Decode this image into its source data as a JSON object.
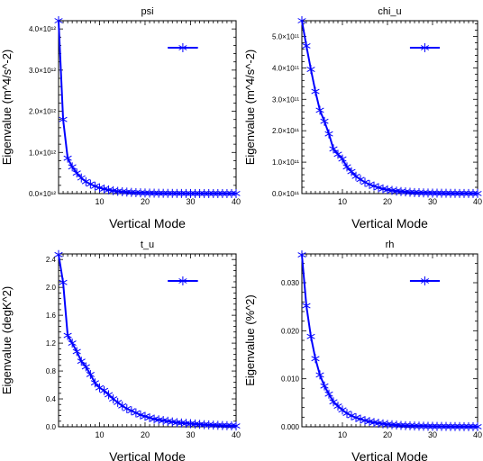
{
  "figure": {
    "name": "eigenvalue-panels"
  },
  "chart_data": [
    {
      "type": "line",
      "title": "psi",
      "xlabel": "Vertical Mode",
      "ylabel": "Eigenvalue (m^4/s^-2)",
      "xlim": [
        1,
        40
      ],
      "ylim": [
        0,
        4200000000000.0
      ],
      "x_ticks": [
        10,
        20,
        30,
        40
      ],
      "y_ticks": [
        0,
        1000000000000.0,
        2000000000000.0,
        3000000000000.0,
        4000000000000.0
      ],
      "y_tick_labels": [
        "0.0×10¹²",
        "1.0×10¹²",
        "2.0×10¹²",
        "3.0×10¹²",
        "4.0×10¹²"
      ],
      "legend": "top-right",
      "series": [
        {
          "color": "#0000ff",
          "marker": "asterisk",
          "x": [
            1,
            2,
            3,
            4,
            5,
            6,
            7,
            8,
            9,
            10,
            11,
            12,
            13,
            14,
            15,
            16,
            17,
            18,
            19,
            20,
            21,
            22,
            23,
            24,
            25,
            26,
            27,
            28,
            29,
            30,
            31,
            32,
            33,
            34,
            35,
            36,
            37,
            38,
            39,
            40
          ],
          "y": [
            4200000000000.0,
            1800000000000.0,
            860000000000.0,
            650000000000.0,
            500000000000.0,
            380000000000.0,
            290000000000.0,
            230000000000.0,
            180000000000.0,
            140000000000.0,
            110000000000.0,
            90000000000.0,
            70000000000.0,
            55000000000.0,
            45000000000.0,
            36000000000.0,
            29000000000.0,
            23000000000.0,
            19000000000.0,
            15000000000.0,
            12000000000.0,
            10000000000.0,
            8000000000.0,
            6500000000.0,
            5500000000.0,
            4500000000.0,
            3700000000.0,
            3000000000.0,
            2500000000.0,
            2100000000.0,
            1800000000.0,
            1500000000.0,
            1200000000.0,
            1000000000.0,
            850000000.0,
            700000000.0,
            600000000.0,
            500000000.0,
            400000000.0,
            300000000.0
          ]
        }
      ]
    },
    {
      "type": "line",
      "title": "chi_u",
      "xlabel": "Vertical Mode",
      "ylabel": "Eigenvalue (m^4/s^-2)",
      "xlim": [
        1,
        40
      ],
      "ylim": [
        0,
        550000000000.0
      ],
      "x_ticks": [
        10,
        20,
        30,
        40
      ],
      "y_ticks": [
        0,
        100000000000.0,
        200000000000.0,
        300000000000.0,
        400000000000.0,
        500000000000.0
      ],
      "y_tick_labels": [
        "0.0×10¹¹",
        "1.0×10¹¹",
        "2.0×10¹¹",
        "3.0×10¹¹",
        "4.0×10¹¹",
        "5.0×10¹¹"
      ],
      "legend": "top-right",
      "series": [
        {
          "color": "#0000ff",
          "marker": "asterisk",
          "x": [
            1,
            2,
            3,
            4,
            5,
            6,
            7,
            8,
            9,
            10,
            11,
            12,
            13,
            14,
            15,
            16,
            17,
            18,
            19,
            20,
            21,
            22,
            23,
            24,
            25,
            26,
            27,
            28,
            29,
            30,
            31,
            32,
            33,
            34,
            35,
            36,
            37,
            38,
            39,
            40
          ],
          "y": [
            550000000000.0,
            470000000000.0,
            395000000000.0,
            325000000000.0,
            265000000000.0,
            230000000000.0,
            190000000000.0,
            142000000000.0,
            125000000000.0,
            110000000000.0,
            85000000000.0,
            70000000000.0,
            55000000000.0,
            45000000000.0,
            36000000000.0,
            29000000000.0,
            24000000000.0,
            19000000000.0,
            15000000000.0,
            12000000000.0,
            10000000000.0,
            8000000000.0,
            6500000000.0,
            5200000000.0,
            4200000000.0,
            3400000000.0,
            2800000000.0,
            2300000000.0,
            1900000000.0,
            1600000000.0,
            1300000000.0,
            1100000000.0,
            900000000.0,
            750000000.0,
            600000000.0,
            500000000.0,
            420000000.0,
            350000000.0,
            280000000.0,
            220000000.0
          ]
        }
      ]
    },
    {
      "type": "line",
      "title": "t_u",
      "xlabel": "Vertical Mode",
      "ylabel": "Eigenvalue (degK^2)",
      "xlim": [
        1,
        40
      ],
      "ylim": [
        0,
        2.48
      ],
      "x_ticks": [
        10,
        20,
        30,
        40
      ],
      "y_ticks": [
        0,
        0.4,
        0.8,
        1.2,
        1.6,
        2.0,
        2.4
      ],
      "y_tick_labels": [
        "0.0",
        "0.4",
        "0.8",
        "1.2",
        "1.6",
        "2.0",
        "2.4"
      ],
      "legend": "top-right",
      "series": [
        {
          "color": "#0000ff",
          "marker": "asterisk",
          "x": [
            1,
            2,
            3,
            4,
            5,
            6,
            7,
            8,
            9,
            10,
            11,
            12,
            13,
            14,
            15,
            16,
            17,
            18,
            19,
            20,
            21,
            22,
            23,
            24,
            25,
            26,
            27,
            28,
            29,
            30,
            31,
            32,
            33,
            34,
            35,
            36,
            37,
            38,
            39,
            40
          ],
          "y": [
            2.47,
            2.07,
            1.31,
            1.2,
            1.08,
            0.94,
            0.86,
            0.75,
            0.63,
            0.56,
            0.52,
            0.46,
            0.4,
            0.35,
            0.3,
            0.26,
            0.23,
            0.2,
            0.17,
            0.15,
            0.13,
            0.11,
            0.1,
            0.09,
            0.08,
            0.07,
            0.06,
            0.055,
            0.05,
            0.045,
            0.04,
            0.035,
            0.03,
            0.027,
            0.024,
            0.021,
            0.018,
            0.016,
            0.014,
            0.012
          ]
        }
      ]
    },
    {
      "type": "line",
      "title": "rh",
      "xlabel": "Vertical Mode",
      "ylabel": "Eigenvalue (%^2)",
      "xlim": [
        1,
        40
      ],
      "ylim": [
        0,
        0.036
      ],
      "x_ticks": [
        10,
        20,
        30,
        40
      ],
      "y_ticks": [
        0,
        0.01,
        0.02,
        0.03
      ],
      "y_tick_labels": [
        "0.000",
        "0.010",
        "0.020",
        "0.030"
      ],
      "legend": "top-right",
      "series": [
        {
          "color": "#0000ff",
          "marker": "asterisk",
          "x": [
            1,
            2,
            3,
            4,
            5,
            6,
            7,
            8,
            9,
            10,
            11,
            12,
            13,
            14,
            15,
            16,
            17,
            18,
            19,
            20,
            21,
            22,
            23,
            24,
            25,
            26,
            27,
            28,
            29,
            30,
            31,
            32,
            33,
            34,
            35,
            36,
            37,
            38,
            39,
            40
          ],
          "y": [
            0.0358,
            0.0252,
            0.0188,
            0.0142,
            0.0108,
            0.0085,
            0.0068,
            0.0052,
            0.0043,
            0.0035,
            0.0028,
            0.0023,
            0.0019,
            0.0016,
            0.0013,
            0.0011,
            0.0009,
            0.00075,
            0.00062,
            0.0005,
            0.00042,
            0.00035,
            0.00029,
            0.00024,
            0.0002,
            0.00017,
            0.00014,
            0.00012,
            0.0001,
            9e-05,
            8e-05,
            7e-05,
            6e-05,
            5e-05,
            4.5e-05,
            4e-05,
            3.5e-05,
            3e-05,
            2.5e-05,
            2e-05
          ]
        }
      ]
    }
  ]
}
